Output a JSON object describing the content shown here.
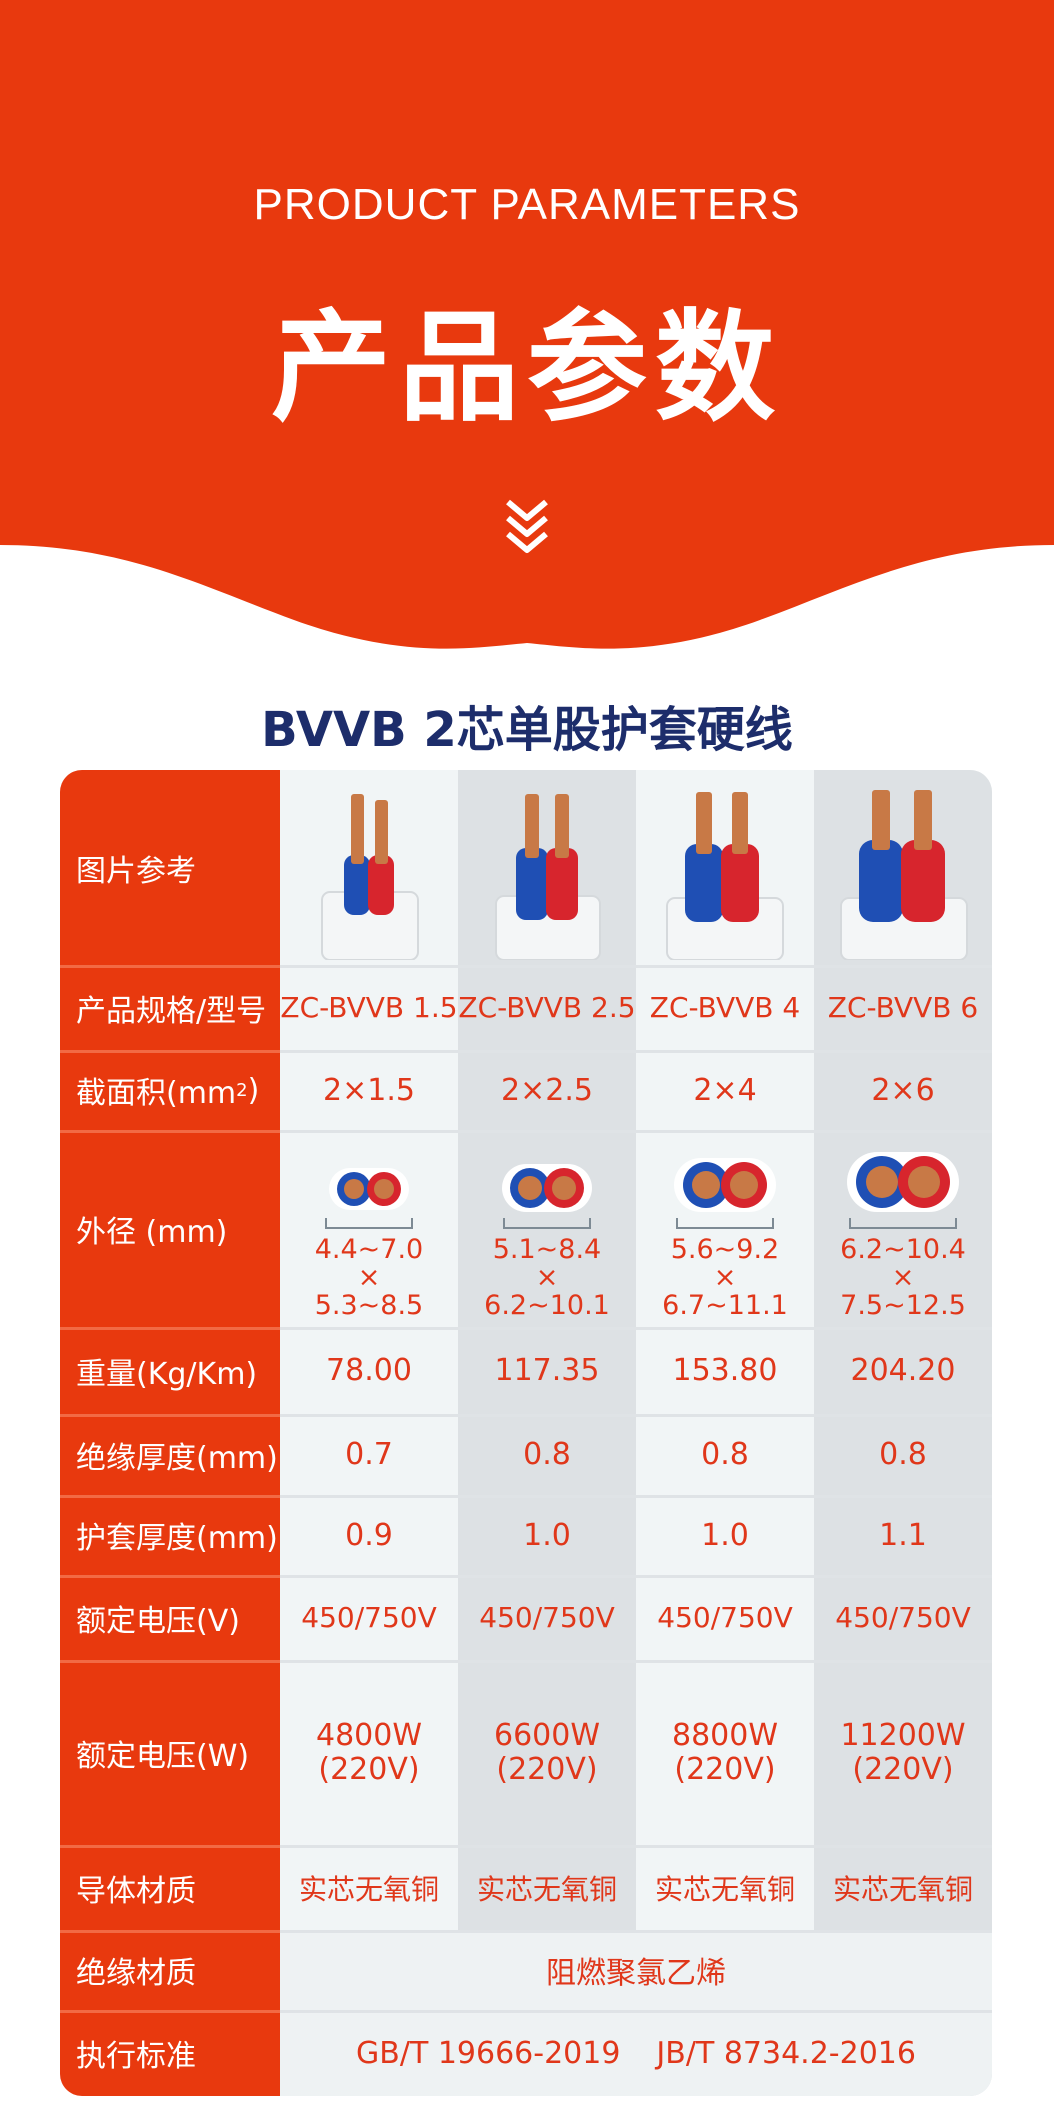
{
  "header": {
    "title_en": "PRODUCT PARAMETERS",
    "title_cn": "产品参数",
    "chevron_icon": "double-chevron-down-icon",
    "accent_color": "#e8390e"
  },
  "product_title": "BVVB 2芯单股护套硬线",
  "table": {
    "row_labels": {
      "image": "图片参考",
      "model": "产品规格/型号",
      "area": "截面积(mm",
      "area_sup": "2",
      "area_close": ")",
      "diameter": "外径 (mm)",
      "weight": "重量(Kg/Km)",
      "insulation_thickness": "绝缘厚度(mm)",
      "sheath_thickness": "护套厚度(mm)",
      "voltage": "额定电压(V)",
      "power": "额定电压(W)",
      "conductor": "导体材质",
      "insulation_material": "绝缘材质",
      "standard": "执行标准"
    },
    "columns": [
      {
        "model": "ZC-BVVB 1.5",
        "area": "2×1.5",
        "diam_a": "4.4~7.0",
        "diam_x": "×",
        "diam_b": "5.3~8.5",
        "weight": "78.00",
        "ins": "0.7",
        "sheath": "0.9",
        "voltage": "450/750V",
        "power": "4800W",
        "power_v": "(220V)",
        "conductor": "实芯无氧铜"
      },
      {
        "model": "ZC-BVVB 2.5",
        "area": "2×2.5",
        "diam_a": "5.1~8.4",
        "diam_x": "×",
        "diam_b": "6.2~10.1",
        "weight": "117.35",
        "ins": "0.8",
        "sheath": "1.0",
        "voltage": "450/750V",
        "power": "6600W",
        "power_v": "(220V)",
        "conductor": "实芯无氧铜"
      },
      {
        "model": "ZC-BVVB 4",
        "area": "2×4",
        "diam_a": "5.6~9.2",
        "diam_x": "×",
        "diam_b": "6.7~11.1",
        "weight": "153.80",
        "ins": "0.8",
        "sheath": "1.0",
        "voltage": "450/750V",
        "power": "8800W",
        "power_v": "(220V)",
        "conductor": "实芯无氧铜"
      },
      {
        "model": "ZC-BVVB 6",
        "area": "2×6",
        "diam_a": "6.2~10.4",
        "diam_x": "×",
        "diam_b": "7.5~12.5",
        "weight": "204.20",
        "ins": "0.8",
        "sheath": "1.1",
        "voltage": "450/750V",
        "power": "11200W",
        "power_v": "(220V)",
        "conductor": "实芯无氧铜"
      }
    ],
    "insulation_material": "阻燃聚氯乙烯",
    "standard_1": "GB/T 19666-2019",
    "standard_2": "JB/T 8734.2-2016"
  }
}
